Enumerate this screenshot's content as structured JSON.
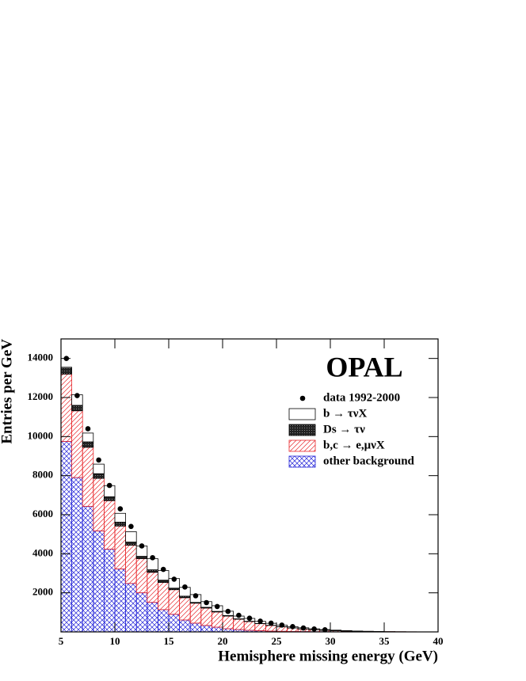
{
  "chart_data": {
    "type": "stacked_histogram",
    "title": "OPAL",
    "x_label": "Hemisphere missing energy (GeV)",
    "y_label": "Entries per GeV",
    "bins": [
      5,
      6,
      7,
      8,
      9,
      10,
      11,
      12,
      13,
      14,
      15,
      16,
      17,
      18,
      19,
      20,
      21,
      22,
      23,
      24,
      25,
      26,
      27,
      28,
      29,
      30,
      31,
      32,
      33,
      34,
      35,
      36,
      37,
      38,
      39,
      40
    ],
    "series": [
      {
        "name": "b → τνX",
        "color": "#000000",
        "hatch": "none",
        "values": [
          50,
          540,
          450,
          490,
          570,
          450,
          530,
          530,
          570,
          490,
          490,
          450,
          400,
          290,
          290,
          220,
          140,
          145,
          108,
          100,
          82,
          64,
          55,
          46,
          37,
          28,
          18,
          9,
          6,
          3,
          3,
          2,
          1,
          1,
          1
        ]
      },
      {
        "name": "Ds → τν",
        "color": "#000000",
        "hatch": "dense",
        "values": [
          300,
          280,
          280,
          240,
          200,
          200,
          160,
          120,
          130,
          120,
          80,
          80,
          40,
          40,
          30,
          30,
          20,
          15,
          12,
          10,
          8,
          6,
          5,
          4,
          3,
          2,
          2,
          1,
          1,
          1,
          0,
          0,
          0,
          0,
          0
        ]
      },
      {
        "name": "b,c → e,μνX",
        "color": "#e8262a",
        "hatch": "diag",
        "values": [
          3450,
          3420,
          3020,
          2690,
          2480,
          2200,
          1960,
          1750,
          1540,
          1390,
          1260,
          1140,
          1020,
          890,
          780,
          650,
          530,
          450,
          360,
          290,
          230,
          180,
          135,
          100,
          72,
          55,
          41,
          32,
          23,
          16,
          11,
          7,
          4,
          3,
          2
        ]
      },
      {
        "name": "other background",
        "color": "#2323d8",
        "hatch": "cross",
        "values": [
          9750,
          7900,
          6430,
          5170,
          4240,
          3220,
          2480,
          2000,
          1510,
          1140,
          900,
          610,
          450,
          330,
          240,
          160,
          120,
          80,
          60,
          40,
          30,
          20,
          15,
          10,
          8,
          5,
          4,
          3,
          2,
          2,
          1,
          1,
          1,
          0,
          0
        ]
      }
    ],
    "data_points": {
      "name": "data 1992-2000",
      "color": "#000000",
      "x": [
        5.5,
        6.5,
        7.5,
        8.5,
        9.5,
        10.5,
        11.5,
        12.5,
        13.5,
        14.5,
        15.5,
        16.5,
        17.5,
        18.5,
        19.5,
        20.5,
        21.5,
        22.5,
        23.5,
        24.5,
        25.5,
        26.5,
        27.5,
        28.5,
        29.5
      ],
      "values": [
        14000,
        12100,
        10400,
        8800,
        7500,
        6300,
        5400,
        4400,
        3800,
        3200,
        2700,
        2300,
        1850,
        1500,
        1300,
        1050,
        850,
        700,
        550,
        450,
        350,
        270,
        200,
        150,
        110
      ]
    },
    "xlim": [
      5,
      40
    ],
    "ylim": [
      0,
      15000
    ],
    "xticks": [
      5,
      10,
      15,
      20,
      25,
      30,
      35,
      40
    ],
    "yticks": [
      2000,
      4000,
      6000,
      8000,
      10000,
      12000,
      14000
    ],
    "legend": "upper right"
  }
}
